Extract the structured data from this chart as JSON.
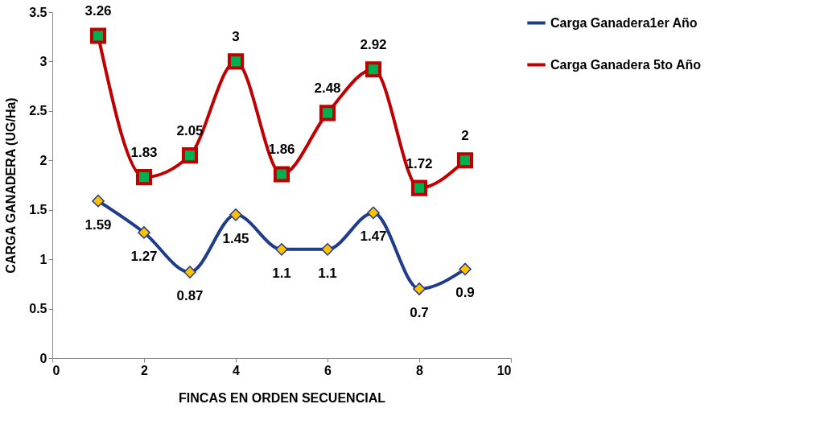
{
  "chart_data": {
    "type": "line",
    "xlabel": "FINCAS EN ORDEN SECUENCIAL",
    "ylabel": "CARGA GANADERA (UG/Ha)",
    "x": [
      1,
      2,
      3,
      4,
      5,
      6,
      7,
      8,
      9
    ],
    "series": [
      {
        "name": "Carga Ganadera1er Año",
        "color": "#1f3c88",
        "marker": "diamond",
        "values": [
          1.59,
          1.27,
          0.87,
          1.45,
          1.1,
          1.1,
          1.47,
          0.7,
          0.9
        ]
      },
      {
        "name": "Carga Ganadera 5to Año",
        "color": "#c00000",
        "marker": "square",
        "values": [
          3.26,
          1.83,
          2.05,
          3,
          1.86,
          2.48,
          2.92,
          1.72,
          2
        ]
      }
    ],
    "xlim": [
      0,
      10
    ],
    "xticks": [
      0,
      2,
      4,
      6,
      8,
      10
    ],
    "ylim": [
      0,
      3.5
    ],
    "yticks": [
      0,
      0.5,
      1,
      1.5,
      2,
      2.5,
      3,
      3.5
    ],
    "data_labels": true,
    "legend": "right",
    "grid": false,
    "line_style": "solid"
  }
}
